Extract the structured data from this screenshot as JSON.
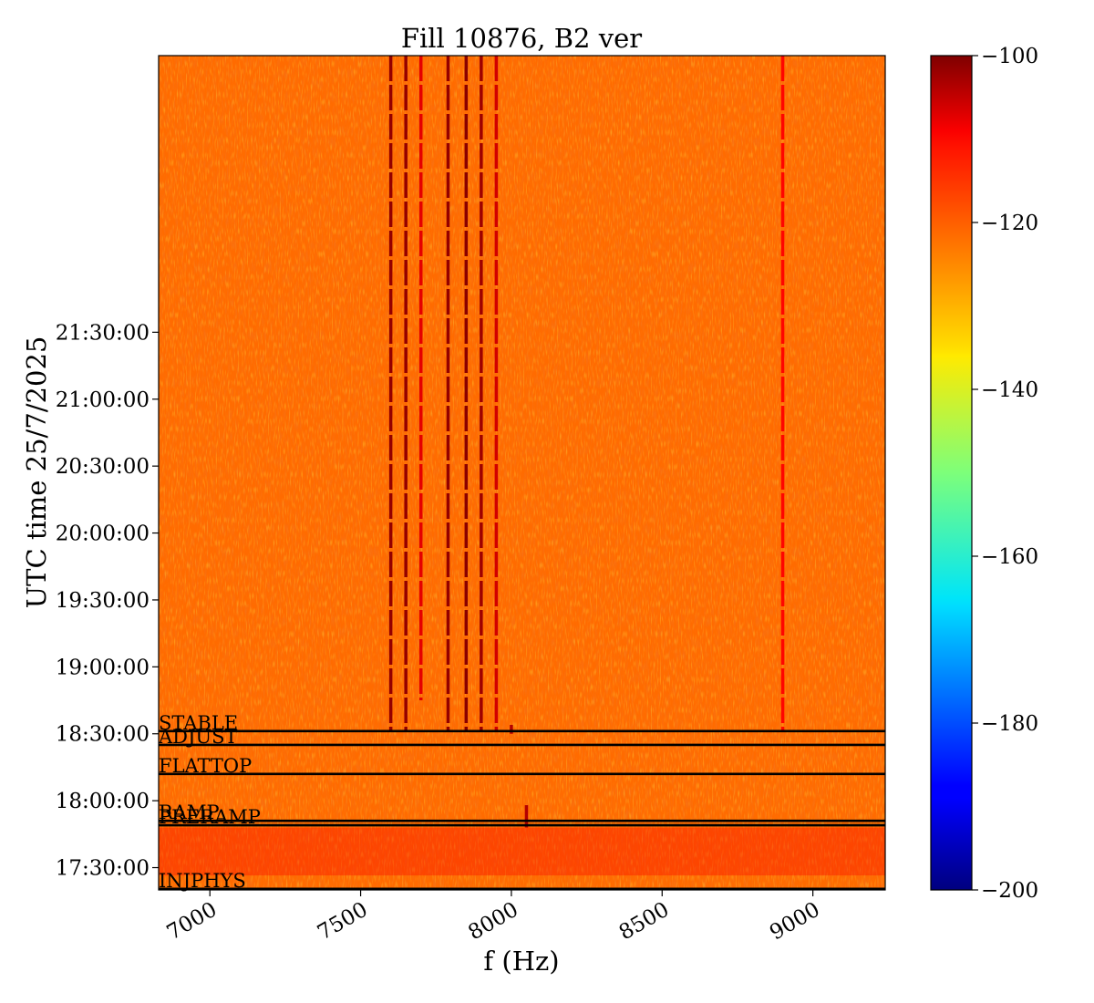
{
  "chart_data": {
    "type": "heatmap",
    "title": "Fill 10876, B2 ver",
    "xlabel": "f (Hz)",
    "ylabel": "UTC time 25/7/2025",
    "xlim": [
      6830,
      9240
    ],
    "ylim_minutes": [
      1040,
      1414
    ],
    "x_ticks": [
      {
        "value": 7000,
        "label": "7000"
      },
      {
        "value": 7500,
        "label": "7500"
      },
      {
        "value": 8000,
        "label": "8000"
      },
      {
        "value": 8500,
        "label": "8500"
      },
      {
        "value": 9000,
        "label": "9000"
      }
    ],
    "y_ticks": [
      {
        "value": 1050,
        "label": "17:30:00"
      },
      {
        "value": 1080,
        "label": "18:00:00"
      },
      {
        "value": 1110,
        "label": "18:30:00"
      },
      {
        "value": 1140,
        "label": "19:00:00"
      },
      {
        "value": 1170,
        "label": "19:30:00"
      },
      {
        "value": 1200,
        "label": "20:00:00"
      },
      {
        "value": 1230,
        "label": "20:30:00"
      },
      {
        "value": 1260,
        "label": "21:00:00"
      },
      {
        "value": 1290,
        "label": "21:30:00"
      }
    ],
    "colorbar": {
      "colormap": "jet",
      "range": [
        -200,
        -100
      ],
      "ticks": [
        {
          "value": -100,
          "label": "−100"
        },
        {
          "value": -120,
          "label": "−120"
        },
        {
          "value": -140,
          "label": "−140"
        },
        {
          "value": -160,
          "label": "−160"
        },
        {
          "value": -180,
          "label": "−180"
        },
        {
          "value": -200,
          "label": "−200"
        }
      ]
    },
    "background_level": -123,
    "beam_phases": [
      {
        "label": "INJPHYS",
        "time": 1040.5
      },
      {
        "label": "PRERAMP",
        "time": 1069.0
      },
      {
        "label": "RAMP",
        "time": 1071.0
      },
      {
        "label": "FLATTOP",
        "time": 1092.0
      },
      {
        "label": "ADJUST",
        "time": 1105.0
      },
      {
        "label": "STABLE",
        "time": 1111.2
      }
    ],
    "lines": [
      {
        "freq": 7600,
        "start": 1111,
        "end": 1414,
        "level": -102
      },
      {
        "freq": 7650,
        "start": 1111,
        "end": 1414,
        "level": -102
      },
      {
        "freq": 7700,
        "start": 1125,
        "end": 1414,
        "level": -110
      },
      {
        "freq": 7790,
        "start": 1111,
        "end": 1414,
        "level": -102
      },
      {
        "freq": 7850,
        "start": 1111,
        "end": 1414,
        "level": -101
      },
      {
        "freq": 7900,
        "start": 1111,
        "end": 1414,
        "level": -103
      },
      {
        "freq": 7950,
        "start": 1111,
        "end": 1414,
        "level": -108
      },
      {
        "freq": 8000,
        "start": 1110,
        "end": 1114,
        "level": -105
      },
      {
        "freq": 8050,
        "start": 1068,
        "end": 1078,
        "level": -105
      },
      {
        "freq": 8900,
        "start": 1111,
        "end": 1414,
        "level": -113
      }
    ]
  }
}
